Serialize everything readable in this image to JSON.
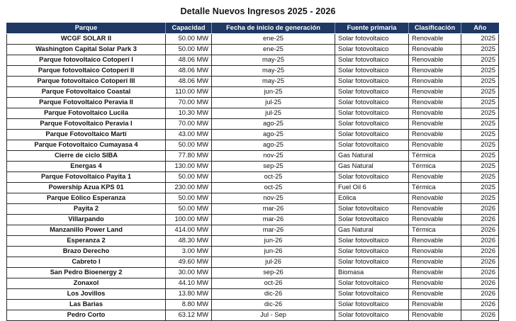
{
  "title": "Detalle Nuevos Ingresos 2025 - 2026",
  "colors": {
    "header_bg": "#1f3864",
    "header_text": "#ffffff",
    "border": "#2a2a2a",
    "title_color": "#141414"
  },
  "table": {
    "columns": [
      {
        "label": "Parque"
      },
      {
        "label": "Capacidad"
      },
      {
        "label": "Fecha de inicio de generación"
      },
      {
        "label": "Fuente primaria"
      },
      {
        "label": "Clasificación"
      },
      {
        "label": "Año"
      }
    ],
    "rows": [
      [
        "WCGF SOLAR II",
        "50.00 MW",
        "ene-25",
        "Solar fotovoltaico",
        "Renovable",
        "2025"
      ],
      [
        "Washington Capital Solar Park 3",
        "50.00 MW",
        "ene-25",
        "Solar fotovoltaico",
        "Renovable",
        "2025"
      ],
      [
        "Parque fotovoltaico Cotoperí I",
        "48.06 MW",
        "may-25",
        "Solar fotovoltaico",
        "Renovable",
        "2025"
      ],
      [
        "Parque fotovoltaico Cotoperí II",
        "48.06 MW",
        "may-25",
        "Solar fotovoltaico",
        "Renovable",
        "2025"
      ],
      [
        "Parque fotovoltaico Cotoperí III",
        "48.06 MW",
        "may-25",
        "Solar fotovoltaico",
        "Renovable",
        "2025"
      ],
      [
        "Parque Fotovoltaico Coastal",
        "110.00 MW",
        "jun-25",
        "Solar fotovoltaico",
        "Renovable",
        "2025"
      ],
      [
        "Parque Fotovoltaico Peravia II",
        "70.00 MW",
        "jul-25",
        "Solar fotovoltaico",
        "Renovable",
        "2025"
      ],
      [
        "Parque Fotovoltaico Lucila",
        "10.30 MW",
        "jul-25",
        "Solar fotovoltaico",
        "Renovable",
        "2025"
      ],
      [
        "Parque Fotovoltaico Peravia I",
        "70.00 MW",
        "ago-25",
        "Solar fotovoltaico",
        "Renovable",
        "2025"
      ],
      [
        "Parque Fotovoltaico Martí",
        "43.00 MW",
        "ago-25",
        "Solar fotovoltaico",
        "Renovable",
        "2025"
      ],
      [
        "Parque Fotovoltaico Cumayasa 4",
        "50.00 MW",
        "ago-25",
        "Solar fotovoltaico",
        "Renovable",
        "2025"
      ],
      [
        "Cierre de ciclo SIBA",
        "77.80 MW",
        "nov-25",
        "Gas Natural",
        "Térmica",
        "2025"
      ],
      [
        "Energas 4",
        "130.00 MW",
        "sep-25",
        "Gas Natural",
        "Térmica",
        "2025"
      ],
      [
        "Parque Fotovoltaico Payita 1",
        "50.00 MW",
        "oct-25",
        "Solar fotovoltaico",
        "Renovable",
        "2025"
      ],
      [
        "Powership Azua KPS 01",
        "230.00 MW",
        "oct-25",
        "Fuel Oil 6",
        "Térmica",
        "2025"
      ],
      [
        "Parque Eólico Esperanza",
        "50.00 MW",
        "nov-25",
        "Eólica",
        "Renovable",
        "2025"
      ],
      [
        "Payita 2",
        "50.00 MW",
        "mar-26",
        "Solar fotovoltaico",
        "Renovable",
        "2026"
      ],
      [
        "Villarpando",
        "100.00 MW",
        "mar-26",
        "Solar fotovoltaico",
        "Renovable",
        "2026"
      ],
      [
        "Manzanillo Power Land",
        "414.00 MW",
        "mar-26",
        "Gas Natural",
        "Térmica",
        "2026"
      ],
      [
        "Esperanza 2",
        "48.30 MW",
        "jun-26",
        "Solar fotovoltaico",
        "Renovable",
        "2026"
      ],
      [
        "Brazo Derecho",
        "3.00 MW",
        "jun-26",
        "Solar fotovoltaico",
        "Renovable",
        "2026"
      ],
      [
        "Cabreto I",
        "49.60 MW",
        "jul-26",
        "Solar fotovoltaico",
        "Renovable",
        "2026"
      ],
      [
        "San Pedro Bioenergy 2",
        "30.00 MW",
        "sep-26",
        "Biomasa",
        "Renovable",
        "2026"
      ],
      [
        "Zonaxol",
        "44.10 MW",
        "oct-26",
        "Solar fotovoltaico",
        "Renovable",
        "2026"
      ],
      [
        "Los Jovillos",
        "13.80 MW",
        "dic-26",
        "Solar fotovoltaico",
        "Renovable",
        "2026"
      ],
      [
        "Las Barias",
        "8.80 MW",
        "dic-26",
        "Solar fotovoltaico",
        "Renovable",
        "2026"
      ],
      [
        "Pedro Corto",
        "63.12 MW",
        "Jul - Sep",
        "Solar fotovoltaico",
        "Renovable",
        "2026"
      ]
    ]
  }
}
